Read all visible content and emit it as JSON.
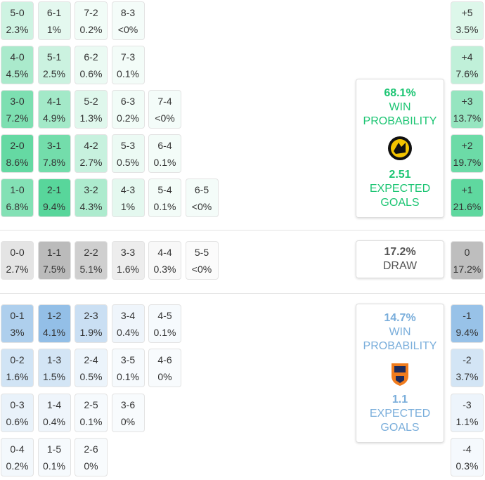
{
  "home": {
    "rows": [
      [
        {
          "score": "5-0",
          "prob": "2.3%"
        },
        {
          "score": "6-1",
          "prob": "1%"
        },
        {
          "score": "7-2",
          "prob": "0.2%"
        },
        {
          "score": "8-3",
          "prob": "<0%"
        }
      ],
      [
        {
          "score": "4-0",
          "prob": "4.5%"
        },
        {
          "score": "5-1",
          "prob": "2.5%"
        },
        {
          "score": "6-2",
          "prob": "0.6%"
        },
        {
          "score": "7-3",
          "prob": "0.1%"
        }
      ],
      [
        {
          "score": "3-0",
          "prob": "7.2%"
        },
        {
          "score": "4-1",
          "prob": "4.9%"
        },
        {
          "score": "5-2",
          "prob": "1.3%"
        },
        {
          "score": "6-3",
          "prob": "0.2%"
        },
        {
          "score": "7-4",
          "prob": "<0%"
        }
      ],
      [
        {
          "score": "2-0",
          "prob": "8.6%"
        },
        {
          "score": "3-1",
          "prob": "7.8%"
        },
        {
          "score": "4-2",
          "prob": "2.7%"
        },
        {
          "score": "5-3",
          "prob": "0.5%"
        },
        {
          "score": "6-4",
          "prob": "0.1%"
        }
      ],
      [
        {
          "score": "1-0",
          "prob": "6.8%"
        },
        {
          "score": "2-1",
          "prob": "9.4%"
        },
        {
          "score": "3-2",
          "prob": "4.3%"
        },
        {
          "score": "4-3",
          "prob": "1%"
        },
        {
          "score": "5-4",
          "prob": "0.1%"
        },
        {
          "score": "6-5",
          "prob": "<0%"
        }
      ]
    ],
    "margins": [
      {
        "label": "+5",
        "prob": "3.5%"
      },
      {
        "label": "+4",
        "prob": "7.6%"
      },
      {
        "label": "+3",
        "prob": "13.7%"
      },
      {
        "label": "+2",
        "prob": "19.7%"
      },
      {
        "label": "+1",
        "prob": "21.6%"
      }
    ],
    "card": {
      "probability": "68.1%",
      "probability_label": "WIN PROBABILITY",
      "xg": "2.51",
      "xg_label": "EXPECTED GOALS"
    }
  },
  "draw": {
    "rows": [
      [
        {
          "score": "0-0",
          "prob": "2.7%"
        },
        {
          "score": "1-1",
          "prob": "7.5%"
        },
        {
          "score": "2-2",
          "prob": "5.1%"
        },
        {
          "score": "3-3",
          "prob": "1.6%"
        },
        {
          "score": "4-4",
          "prob": "0.3%"
        },
        {
          "score": "5-5",
          "prob": "<0%"
        }
      ]
    ],
    "margins": [
      {
        "label": "0",
        "prob": "17.2%"
      }
    ],
    "card": {
      "probability": "17.2%",
      "probability_label": "DRAW"
    }
  },
  "away": {
    "rows": [
      [
        {
          "score": "0-1",
          "prob": "3%"
        },
        {
          "score": "1-2",
          "prob": "4.1%"
        },
        {
          "score": "2-3",
          "prob": "1.9%"
        },
        {
          "score": "3-4",
          "prob": "0.4%"
        },
        {
          "score": "4-5",
          "prob": "0.1%"
        }
      ],
      [
        {
          "score": "0-2",
          "prob": "1.6%"
        },
        {
          "score": "1-3",
          "prob": "1.5%"
        },
        {
          "score": "2-4",
          "prob": "0.5%"
        },
        {
          "score": "3-5",
          "prob": "0.1%"
        },
        {
          "score": "4-6",
          "prob": "0%"
        }
      ],
      [
        {
          "score": "0-3",
          "prob": "0.6%"
        },
        {
          "score": "1-4",
          "prob": "0.4%"
        },
        {
          "score": "2-5",
          "prob": "0.1%"
        },
        {
          "score": "3-6",
          "prob": "0%"
        }
      ],
      [
        {
          "score": "0-4",
          "prob": "0.2%"
        },
        {
          "score": "1-5",
          "prob": "0.1%"
        },
        {
          "score": "2-6",
          "prob": "0%"
        }
      ]
    ],
    "margins": [
      {
        "label": "-1",
        "prob": "9.4%"
      },
      {
        "label": "-2",
        "prob": "3.7%"
      },
      {
        "label": "-3",
        "prob": "1.1%"
      },
      {
        "label": "-4",
        "prob": "0.3%"
      }
    ],
    "card": {
      "probability": "14.7%",
      "probability_label": "WIN PROBABILITY",
      "xg": "1.1",
      "xg_label": "EXPECTED GOALS"
    }
  }
}
